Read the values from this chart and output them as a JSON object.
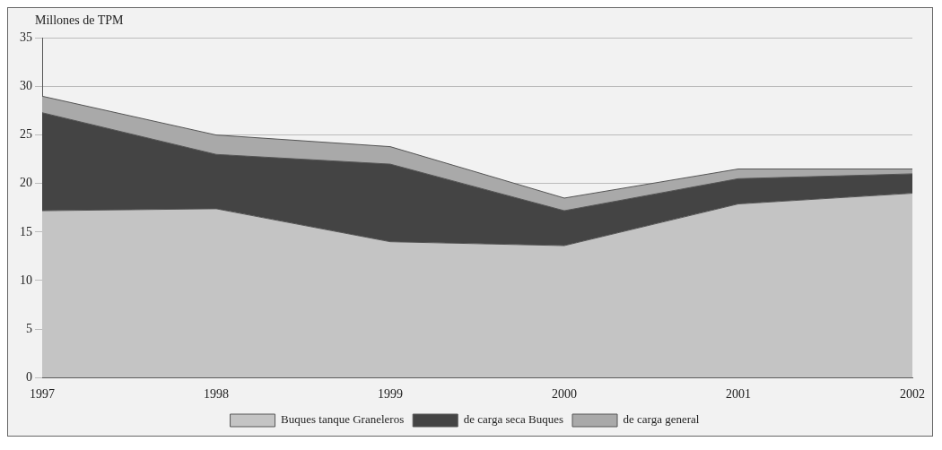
{
  "chart_data": {
    "type": "area",
    "ylabel": "Millones de TPM",
    "categories": [
      "1997",
      "1998",
      "1999",
      "2000",
      "2001",
      "2002"
    ],
    "stacked": true,
    "series": [
      {
        "name": "Buques tanque Graneleros",
        "color": "#c4c4c4",
        "values": [
          17.2,
          17.4,
          14,
          13.6,
          17.9,
          19
        ]
      },
      {
        "name": "de carga seca Buques",
        "color": "#444444",
        "values": [
          10.1,
          5.6,
          8,
          3.6,
          2.6,
          2
        ]
      },
      {
        "name": "de carga general",
        "color": "#a9a9a9",
        "values": [
          1.7,
          2,
          1.8,
          1.3,
          1,
          0.5
        ]
      }
    ],
    "ylim": [
      0,
      35
    ],
    "yticks": [
      0,
      5,
      10,
      15,
      20,
      25,
      30,
      35
    ],
    "grid": "y",
    "legend": "bottom"
  }
}
